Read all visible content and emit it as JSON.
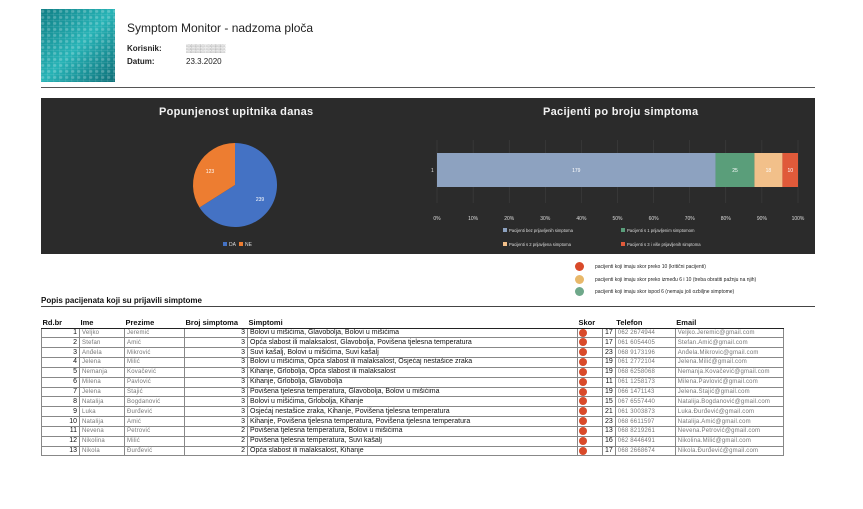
{
  "header": {
    "title": "Symptom Monitor - nadzoma ploča",
    "user_label": "Korisnik:",
    "user_value": "▒▒▒▒ ▒▒▒▒",
    "date_label": "Datum:",
    "date_value": "23.3.2020"
  },
  "colors": {
    "dashboard_bg": "#2b2b2b",
    "pie_da": "#4472c4",
    "pie_ne": "#ed7d31",
    "bar_none": "#8da2c0",
    "bar_one": "#5a9e7a",
    "bar_two": "#f2c08a",
    "bar_three": "#e05a3a",
    "dot_red": "#d94a2a",
    "dot_yellow": "#e8b86a",
    "dot_green": "#6fa88a"
  },
  "chart_data": [
    {
      "type": "pie",
      "title": "Popunjenost upitnika danas",
      "categories": [
        "DA",
        "NE"
      ],
      "values": [
        239,
        123
      ],
      "legend_position": "bottom"
    },
    {
      "type": "bar",
      "orientation": "horizontal",
      "stacked": "100%",
      "title": "Pacijenti po broju simptoma",
      "categories": [
        "1"
      ],
      "series": [
        {
          "name": "Pacijenti bez prijavljenih simptoma",
          "values": [
            179
          ]
        },
        {
          "name": "Pacijenti s 1 prijavljenim simptomom",
          "values": [
            25
          ]
        },
        {
          "name": "Pacijenti s 2 prijavljena simptoma",
          "values": [
            18
          ]
        },
        {
          "name": "Pacijenti s 3 i više prijavljenih simptoma",
          "values": [
            10
          ]
        }
      ],
      "xlim": [
        0,
        100
      ],
      "x_tick_labels": [
        "0%",
        "10%",
        "20%",
        "30%",
        "40%",
        "50%",
        "60%",
        "70%",
        "80%",
        "90%",
        "100%"
      ],
      "legend_position": "bottom"
    }
  ],
  "score_legend": [
    {
      "color": "red",
      "text": "pacijenti koji imaju skor preko 10 (kritični pacijenti)"
    },
    {
      "color": "yellow",
      "text": "pacijenti koji imaju skor preko između 6 i 10 (treba obratiti pažnju na njih)"
    },
    {
      "color": "green",
      "text": "pacijenti koji imaju skor ispod 6 (nemaju još ozbiljne simptome)"
    }
  ],
  "list": {
    "title": "Popis pacijenata koji su prijavili simptome",
    "columns": [
      "Rd.br",
      "Ime",
      "Prezime",
      "Broj simptoma",
      "Simptomi",
      "Skor",
      "Telefon",
      "Email"
    ],
    "rows": [
      {
        "n": "1",
        "ime": "Veljko",
        "prezime": "Jeremić",
        "broj": "3",
        "simptomi": "Bolovi u mišićima, Glavobolja, Bolovi u mišićima",
        "skor": "17",
        "tel": "062 2674944",
        "email": "Veljko.Jeremic@gmail.com"
      },
      {
        "n": "2",
        "ime": "Stefan",
        "prezime": "Amić",
        "broj": "3",
        "simptomi": "Opća slabost ili malaksalost, Glavobolja, Povišena tjelesna temperatura",
        "skor": "17",
        "tel": "061 6054405",
        "email": "Stefan.Amić@gmail.com"
      },
      {
        "n": "3",
        "ime": "Anđela",
        "prezime": "Mikrović",
        "broj": "3",
        "simptomi": "Suvi kašalj, Bolovi u mišićima, Suvi kašalj",
        "skor": "23",
        "tel": "068 9173196",
        "email": "Anđela.Mikrovic@gmail.com"
      },
      {
        "n": "4",
        "ime": "Jelena",
        "prezime": "Milić",
        "broj": "3",
        "simptomi": "Bolovi u mišićima, Opća slabost ili malaksalost, Osjećaj nestašice zraka",
        "skor": "19",
        "tel": "061 2772104",
        "email": "Jelena.Milić@gmail.com"
      },
      {
        "n": "5",
        "ime": "Nemanja",
        "prezime": "Kovačević",
        "broj": "3",
        "simptomi": "Kihanje, Grlobolja, Opća slabost ili malaksalost",
        "skor": "19",
        "tel": "068 6258068",
        "email": "Nemanja.Kovačević@gmail.com"
      },
      {
        "n": "6",
        "ime": "Milena",
        "prezime": "Pavlović",
        "broj": "3",
        "simptomi": "Kihanje, Grlobolja, Glavobolja",
        "skor": "11",
        "tel": "061 1258173",
        "email": "Milena.Pavlović@gmail.com"
      },
      {
        "n": "7",
        "ime": "Jelena",
        "prezime": "Stajić",
        "broj": "3",
        "simptomi": "Povišena tjelesna temperatura, Glavobolja, Bolovi u mišićima",
        "skor": "19",
        "tel": "066 1471143",
        "email": "Jelena.Stajić@gmail.com"
      },
      {
        "n": "8",
        "ime": "Natalija",
        "prezime": "Bogdanović",
        "broj": "3",
        "simptomi": "Bolovi u mišićima, Grlobolja, Kihanje",
        "skor": "15",
        "tel": "067 6557440",
        "email": "Natalija.Bogdanović@gmail.com"
      },
      {
        "n": "9",
        "ime": "Luka",
        "prezime": "Đurđević",
        "broj": "3",
        "simptomi": "Osjećaj nestašice zraka, Kihanje, Povišena tjelesna temperatura",
        "skor": "21",
        "tel": "061 3003873",
        "email": "Luka.Đurđević@gmail.com"
      },
      {
        "n": "10",
        "ime": "Natalija",
        "prezime": "Amić",
        "broj": "3",
        "simptomi": "Kihanje, Povišena tjelesna temperatura, Povišena tjelesna temperatura",
        "skor": "23",
        "tel": "068 6611597",
        "email": "Natalija.Amić@gmail.com"
      },
      {
        "n": "11",
        "ime": "Nevena",
        "prezime": "Petrović",
        "broj": "2",
        "simptomi": "Povišena tjelesna temperatura, Bolovi u mišićima",
        "skor": "13",
        "tel": "068 8219261",
        "email": "Nevena.Petrović@gmail.com"
      },
      {
        "n": "12",
        "ime": "Nikolina",
        "prezime": "Milić",
        "broj": "2",
        "simptomi": "Povišena tjelesna temperatura, Suvi kašalj",
        "skor": "16",
        "tel": "062 8446491",
        "email": "Nikolina.Milić@gmail.com"
      },
      {
        "n": "13",
        "ime": "Nikola",
        "prezime": "Đurđević",
        "broj": "2",
        "simptomi": "Opća slabost ili malaksalost, Kihanje",
        "skor": "17",
        "tel": "068 2668674",
        "email": "Nikola.Đurđević@gmail.com"
      }
    ]
  }
}
